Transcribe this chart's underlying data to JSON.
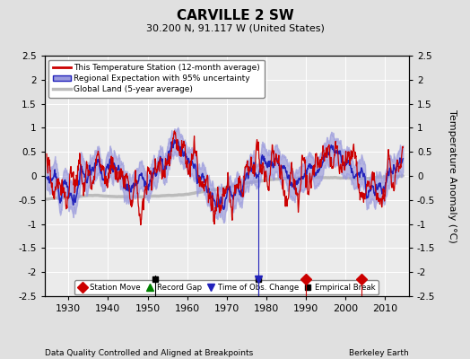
{
  "title": "CARVILLE 2 SW",
  "subtitle": "30.200 N, 91.117 W (United States)",
  "xlabel_bottom": "Data Quality Controlled and Aligned at Breakpoints",
  "xlabel_right": "Berkeley Earth",
  "ylabel": "Temperature Anomaly (°C)",
  "ylim": [
    -2.5,
    2.5
  ],
  "xlim": [
    1924,
    2016
  ],
  "yticks": [
    -2.5,
    -2,
    -1.5,
    -1,
    -0.5,
    0,
    0.5,
    1,
    1.5,
    2,
    2.5
  ],
  "xticks": [
    1930,
    1940,
    1950,
    1960,
    1970,
    1980,
    1990,
    2000,
    2010
  ],
  "bg_color": "#e0e0e0",
  "plot_bg_color": "#ebebeb",
  "station_color": "#cc0000",
  "regional_color": "#2222bb",
  "regional_fill_color": "#9999dd",
  "global_color": "#bbbbbb",
  "legend_entries": [
    "This Temperature Station (12-month average)",
    "Regional Expectation with 95% uncertainty",
    "Global Land (5-year average)"
  ],
  "marker_events": {
    "station_move": [
      1990,
      2004
    ],
    "record_gap": [],
    "time_obs_change": [
      1978
    ],
    "empirical_break": [
      1952,
      1978
    ]
  },
  "marker_y": -2.15,
  "marker_line_top": -1.85
}
